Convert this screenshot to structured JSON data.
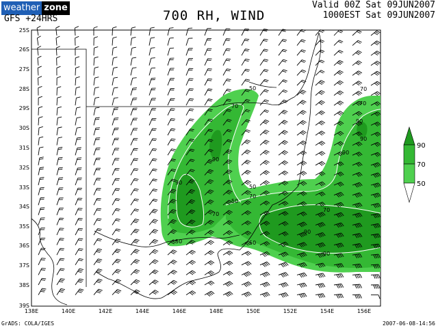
{
  "logo": {
    "part1": "weather",
    "part2": "zone"
  },
  "model": "GFS  +24HRS",
  "title": "700 RH, WIND",
  "valid_line1": "Valid 00Z Sat 09JUN2007",
  "valid_line2": "1000EST Sat 09JUN2007",
  "footer_left": "GrADS: COLA/IGES",
  "footer_right": "2007-06-08-14:56",
  "colors": {
    "rh50": "#4fd04f",
    "rh70": "#34b834",
    "rh90": "#1f9a1f"
  },
  "map": {
    "lat_labels": [
      "25S",
      "26S",
      "27S",
      "28S",
      "29S",
      "30S",
      "31S",
      "32S",
      "33S",
      "34S",
      "35S",
      "36S",
      "37S",
      "38S",
      "39S"
    ],
    "lon_labels": [
      "138E",
      "140E",
      "142E",
      "144E",
      "146E",
      "148E",
      "150E",
      "152E",
      "154E",
      "156E"
    ],
    "contour_labels": [
      "50",
      "70",
      "70",
      "90",
      "90",
      "70",
      "50",
      "70",
      "90",
      "50",
      "70",
      "90",
      "50",
      "50",
      "70",
      "90",
      "90",
      "90"
    ]
  },
  "legend": {
    "levels": [
      "90",
      "70",
      "50"
    ]
  },
  "chart_data": {
    "type": "map",
    "field": "700 hPa relative humidity and wind barbs",
    "contour_levels": [
      50,
      70,
      90
    ],
    "lat_range": [
      "25S",
      "39S"
    ],
    "lon_range": [
      "138E",
      "157E"
    ]
  }
}
